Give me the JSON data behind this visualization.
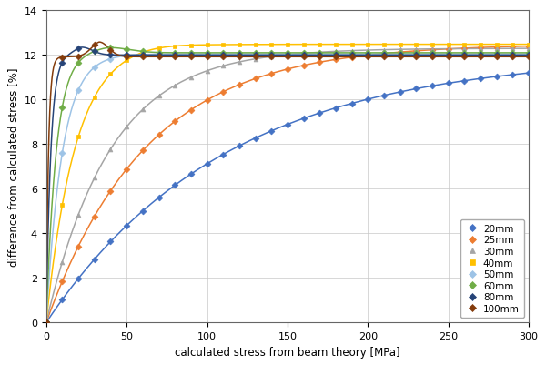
{
  "series": [
    {
      "label": "20mm",
      "color": "#4472C4",
      "marker": "D",
      "A": 12.0,
      "k": 0.009,
      "asymptote": 12.0,
      "peak": null
    },
    {
      "label": "25mm",
      "color": "#ED7D31",
      "marker": "D",
      "A": 12.5,
      "k": 0.016,
      "asymptote": 12.5,
      "peak": null
    },
    {
      "label": "30mm",
      "color": "#A5A5A5",
      "marker": "^",
      "A": 12.3,
      "k": 0.025,
      "asymptote": 12.3,
      "peak": null
    },
    {
      "label": "40mm",
      "color": "#FFC000",
      "marker": "s",
      "A": 12.48,
      "k": 0.055,
      "asymptote": 12.48,
      "peak": {
        "val": 12.58,
        "xp": 60,
        "decay": 0.0008
      }
    },
    {
      "label": "50mm",
      "color": "#9DC3E6",
      "marker": "D",
      "A": 12.05,
      "k": 0.1,
      "asymptote": 12.05,
      "peak": null
    },
    {
      "label": "60mm",
      "color": "#70AD47",
      "marker": "D",
      "A": 12.1,
      "k": 0.16,
      "asymptote": 12.1,
      "peak": {
        "val": 12.35,
        "xp": 38,
        "decay": 0.003
      }
    },
    {
      "label": "80mm",
      "color": "#264478",
      "marker": "D",
      "A": 12.0,
      "k": 0.35,
      "asymptote": 12.0,
      "peak": {
        "val": 12.35,
        "xp": 22,
        "decay": 0.012
      }
    },
    {
      "label": "100mm",
      "color": "#843C0C",
      "marker": "D",
      "A": 11.92,
      "k": 0.7,
      "asymptote": 11.92,
      "peak": {
        "val": 12.58,
        "xp": 33,
        "decay": 0.015
      }
    }
  ],
  "xlim": [
    0,
    300
  ],
  "ylim": [
    0,
    14
  ],
  "xlabel": "calculated stress from beam theory [MPa]",
  "ylabel": "difference from calculated stress [%]",
  "xticks": [
    0,
    50,
    100,
    150,
    200,
    250,
    300
  ],
  "yticks": [
    0,
    2,
    4,
    6,
    8,
    10,
    12,
    14
  ],
  "figsize": [
    6.0,
    4.02
  ],
  "dpi": 100,
  "n_line_pts": 2000,
  "n_marker_pts": 31
}
